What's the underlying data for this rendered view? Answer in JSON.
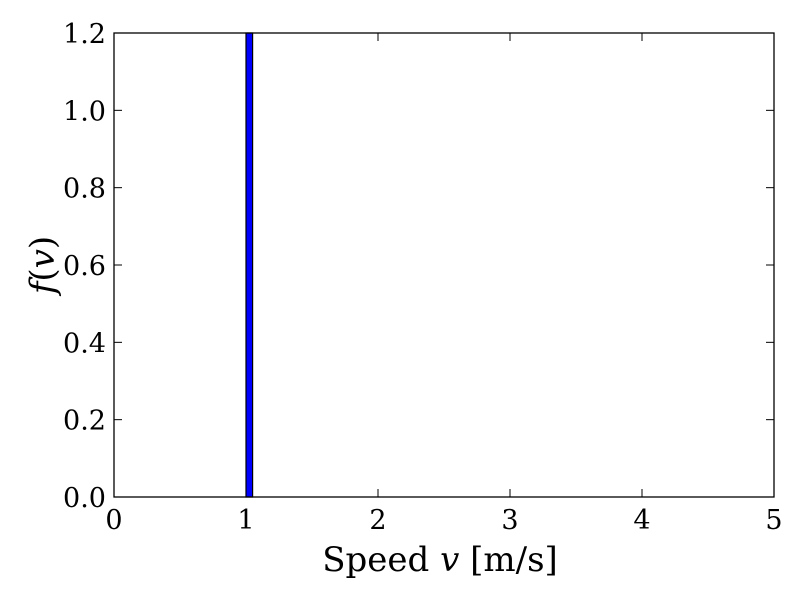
{
  "chart_data": {
    "type": "bar",
    "title": "",
    "xlabel": {
      "prefix": "Speed ",
      "variable": "v",
      "suffix": " [m/s]"
    },
    "ylabel": {
      "function": "f",
      "open": "(",
      "variable": "v",
      "close": ")"
    },
    "xlim": [
      0,
      5
    ],
    "ylim": [
      0,
      1.2
    ],
    "xticks": [
      0,
      1,
      2,
      3,
      4,
      5
    ],
    "xtick_labels": [
      "0",
      "1",
      "2",
      "3",
      "4",
      "5"
    ],
    "yticks": [
      0,
      0.2,
      0.4,
      0.6,
      0.8,
      1.0,
      1.2
    ],
    "ytick_labels": [
      "0.0",
      "0.2",
      "0.4",
      "0.6",
      "0.8",
      "1.0",
      "1.2"
    ],
    "bars": [
      {
        "x_left": 1.0,
        "x_right": 1.05,
        "height": 1.2
      }
    ],
    "grid": false,
    "colors": {
      "bar_fill": "#0000ff",
      "bar_edge": "#000000",
      "axes": "#000000",
      "background": "#ffffff"
    }
  }
}
